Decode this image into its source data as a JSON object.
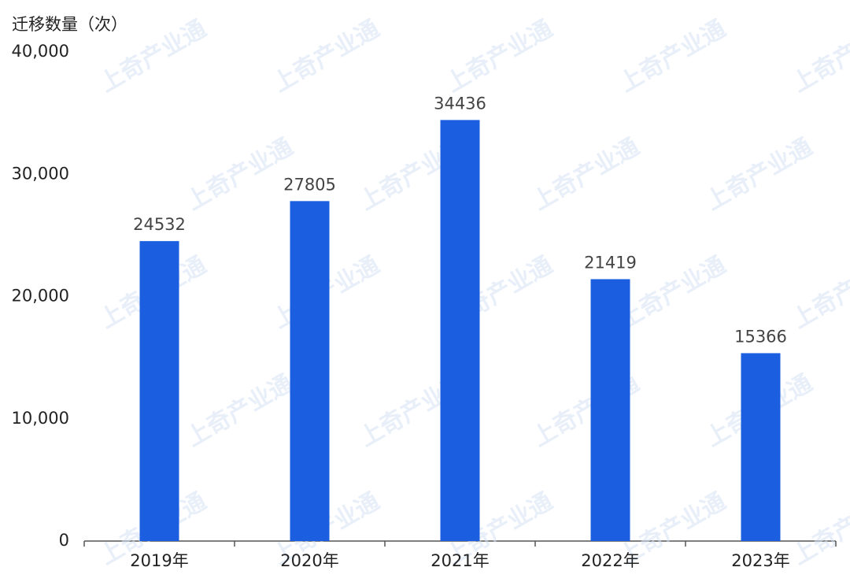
{
  "chart_data": {
    "type": "bar",
    "y_label": "迁移数量（次）",
    "watermark": "上奇产业通",
    "categories": [
      "2019年",
      "2020年",
      "2021年",
      "2022年",
      "2023年"
    ],
    "values": [
      24532,
      27805,
      34436,
      21419,
      15366
    ],
    "color": "#1b5fe0",
    "ylim": [
      0,
      40000
    ],
    "yticks": [
      0,
      {
        "value": 10000,
        "label": "10,000"
      },
      {
        "value": 20000,
        "label": "20,000"
      },
      {
        "value": 30000,
        "label": "30,000"
      },
      {
        "value": 40000,
        "label": "40,000"
      }
    ],
    "grid": false
  }
}
